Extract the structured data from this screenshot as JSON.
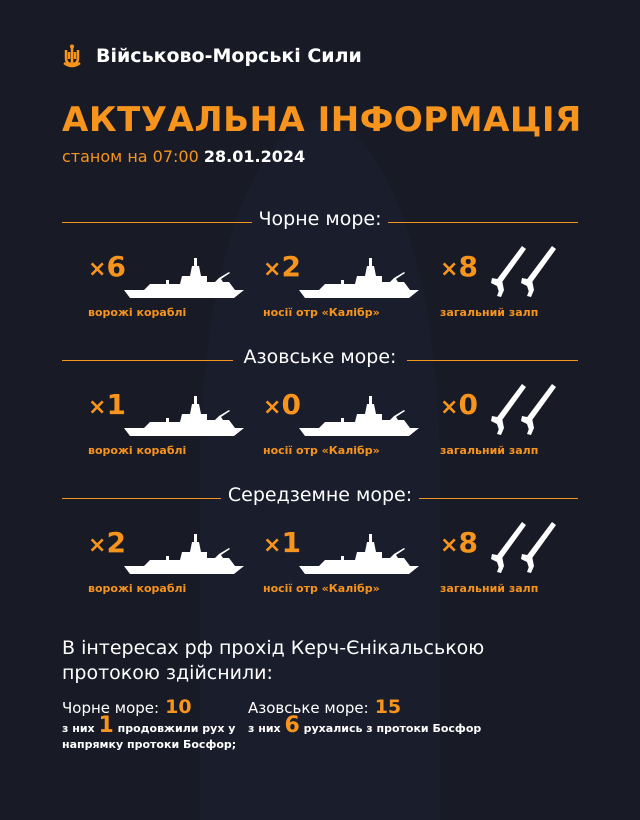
{
  "header": {
    "brand": "Військово-Морські Сили",
    "title": "АКТУАЛЬНА ІНФОРМАЦІЯ",
    "date_prefix": "станом на 07:00",
    "date": "28.01.2024"
  },
  "accent_color": "#f7941d",
  "sections": [
    {
      "heading": "Чорне море:",
      "items": [
        {
          "value": "6",
          "label": "ворожі кораблі",
          "icon": "warship-icon"
        },
        {
          "value": "2",
          "label": "носії отр «Калібр»",
          "icon": "warship-icon"
        },
        {
          "value": "8",
          "label": "загальний залп",
          "icon": "missiles-icon"
        }
      ]
    },
    {
      "heading": "Азовське море:",
      "items": [
        {
          "value": "1",
          "label": "ворожі кораблі",
          "icon": "warship-icon"
        },
        {
          "value": "0",
          "label": "носії отр «Калібр»",
          "icon": "warship-icon"
        },
        {
          "value": "0",
          "label": "загальний залп",
          "icon": "missiles-icon"
        }
      ]
    },
    {
      "heading": "Середземне море:",
      "items": [
        {
          "value": "2",
          "label": "ворожі кораблі",
          "icon": "warship-icon"
        },
        {
          "value": "1",
          "label": "носії отр «Калібр»",
          "icon": "warship-icon"
        },
        {
          "value": "8",
          "label": "загальний залп",
          "icon": "missiles-icon"
        }
      ]
    }
  ],
  "multiplier": "×",
  "kerch": {
    "text": "В інтересах рф прохід Керч-Єнікальською протокою здійснили:",
    "black": {
      "label": "Чорне море:",
      "value": "10",
      "sub_prefix": "з них",
      "sub_value": "1",
      "sub_suffix": "продовжили рух у напрямку протоки Босфор;"
    },
    "azov": {
      "label": "Азовське море:",
      "value": "15",
      "sub_prefix": "з них",
      "sub_value": "6",
      "sub_suffix": "рухались з протоки Босфор"
    }
  }
}
